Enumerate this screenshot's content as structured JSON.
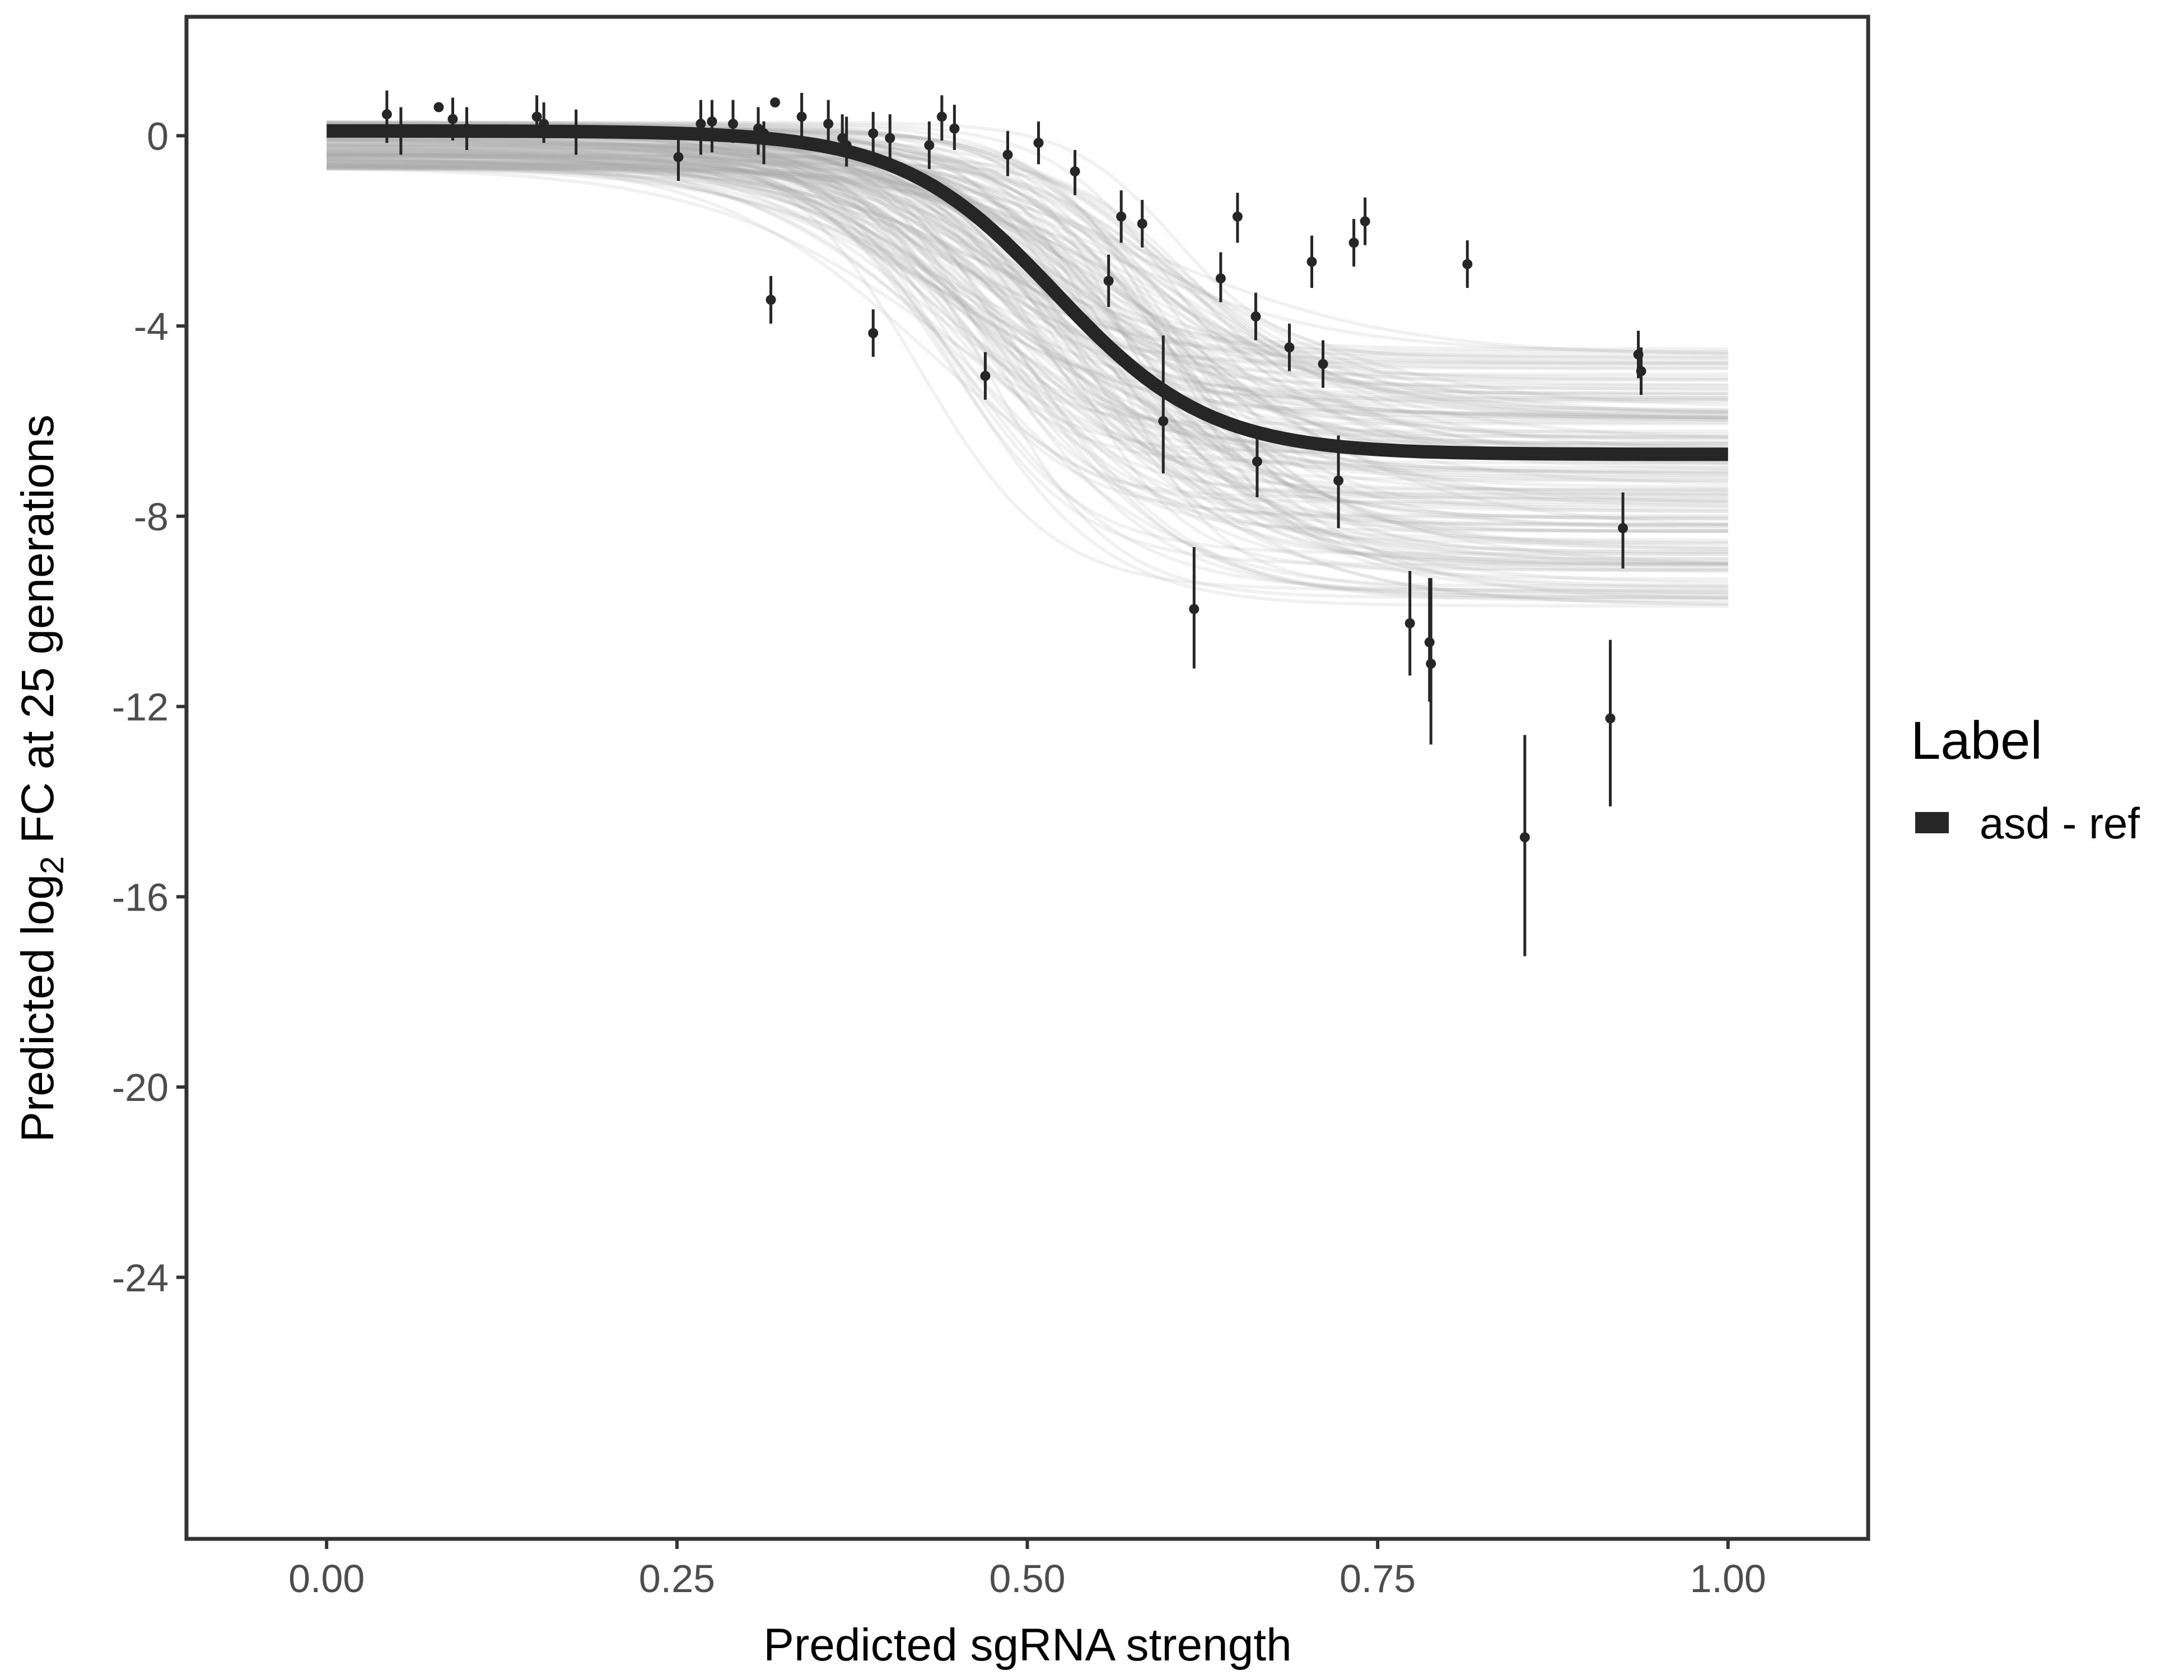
{
  "chart_data": {
    "type": "scatter",
    "title": "",
    "xlabel": "Predicted sgRNA strength",
    "ylabel": {
      "prefix": "Predicted  log",
      "subscript": "2",
      "suffix": " FC at 25 generations"
    },
    "xlim": [
      -0.1,
      1.1
    ],
    "ylim": [
      -29.5,
      2.5
    ],
    "x_ticks": [
      0.0,
      0.25,
      0.5,
      0.75,
      1.0
    ],
    "x_tick_labels": [
      "0.00",
      "0.25",
      "0.50",
      "0.75",
      "1.00"
    ],
    "y_ticks": [
      0,
      -4,
      -8,
      -12,
      -16,
      -20,
      -24
    ],
    "y_tick_labels": [
      "0",
      "-4",
      "-8",
      "-12",
      "-16",
      "-20",
      "-24"
    ],
    "grid": false,
    "legend": {
      "title": "Label",
      "position": "right",
      "entries": [
        {
          "label": "asd - ref",
          "color": "#262626"
        }
      ]
    },
    "fit_curve": {
      "model": "logistic",
      "name": "asd - ref",
      "upper": 0.1,
      "lower": -6.7,
      "midpoint": 0.52,
      "scale": 0.055,
      "x_range": [
        0.0,
        1.0
      ],
      "color": "#262626"
    },
    "posterior_draws": {
      "count": 160,
      "color": "#a6a6a6",
      "upper_range": [
        -0.7,
        0.3
      ],
      "lower_range": [
        -9.9,
        -4.4
      ],
      "midpoint_range": [
        0.42,
        0.62
      ],
      "scale_range": [
        0.035,
        0.09
      ]
    },
    "points": [
      {
        "x": 0.043,
        "y": 0.45,
        "lo": -0.15,
        "hi": 0.95
      },
      {
        "x": 0.053,
        "y": 0.1,
        "lo": -0.4,
        "hi": 0.6
      },
      {
        "x": 0.08,
        "y": 0.6,
        "lo": 0.6,
        "hi": 0.6
      },
      {
        "x": 0.09,
        "y": 0.35,
        "lo": -0.1,
        "hi": 0.8
      },
      {
        "x": 0.1,
        "y": 0.15,
        "lo": -0.3,
        "hi": 0.6
      },
      {
        "x": 0.15,
        "y": 0.4,
        "lo": -0.05,
        "hi": 0.85
      },
      {
        "x": 0.155,
        "y": 0.25,
        "lo": -0.15,
        "hi": 0.7
      },
      {
        "x": 0.178,
        "y": 0.05,
        "lo": -0.4,
        "hi": 0.55
      },
      {
        "x": 0.251,
        "y": -0.45,
        "lo": -0.95,
        "hi": 0.1
      },
      {
        "x": 0.267,
        "y": 0.25,
        "lo": -0.4,
        "hi": 0.75
      },
      {
        "x": 0.275,
        "y": 0.3,
        "lo": -0.35,
        "hi": 0.75
      },
      {
        "x": 0.29,
        "y": 0.25,
        "lo": -0.15,
        "hi": 0.75
      },
      {
        "x": 0.308,
        "y": 0.15,
        "lo": -0.4,
        "hi": 0.6
      },
      {
        "x": 0.312,
        "y": 0.05,
        "lo": -0.6,
        "hi": 0.3
      },
      {
        "x": 0.317,
        "y": -3.45,
        "lo": -3.95,
        "hi": -2.95
      },
      {
        "x": 0.32,
        "y": 0.7,
        "lo": 0.7,
        "hi": 0.7
      },
      {
        "x": 0.339,
        "y": 0.4,
        "lo": -0.2,
        "hi": 0.9
      },
      {
        "x": 0.358,
        "y": 0.25,
        "lo": -0.2,
        "hi": 0.75
      },
      {
        "x": 0.368,
        "y": -0.05,
        "lo": -0.4,
        "hi": 0.45
      },
      {
        "x": 0.371,
        "y": -0.2,
        "lo": -0.65,
        "hi": 0.4
      },
      {
        "x": 0.39,
        "y": 0.05,
        "lo": -0.55,
        "hi": 0.5
      },
      {
        "x": 0.39,
        "y": -4.15,
        "lo": -4.65,
        "hi": -3.65
      },
      {
        "x": 0.402,
        "y": -0.05,
        "lo": -0.6,
        "hi": 0.45
      },
      {
        "x": 0.43,
        "y": -0.2,
        "lo": -0.7,
        "hi": 0.3
      },
      {
        "x": 0.439,
        "y": 0.4,
        "lo": -0.1,
        "hi": 0.85
      },
      {
        "x": 0.448,
        "y": 0.15,
        "lo": -0.3,
        "hi": 0.65
      },
      {
        "x": 0.47,
        "y": -5.05,
        "lo": -5.55,
        "hi": -4.55
      },
      {
        "x": 0.486,
        "y": -0.4,
        "lo": -0.85,
        "hi": 0.1
      },
      {
        "x": 0.508,
        "y": -0.15,
        "lo": -0.6,
        "hi": 0.3
      },
      {
        "x": 0.534,
        "y": -0.75,
        "lo": -1.25,
        "hi": -0.3
      },
      {
        "x": 0.558,
        "y": -3.05,
        "lo": -3.6,
        "hi": -2.5
      },
      {
        "x": 0.567,
        "y": -1.7,
        "lo": -2.25,
        "hi": -1.15
      },
      {
        "x": 0.582,
        "y": -1.85,
        "lo": -2.35,
        "hi": -1.35
      },
      {
        "x": 0.597,
        "y": -6.0,
        "lo": -7.1,
        "hi": -4.2
      },
      {
        "x": 0.619,
        "y": -9.95,
        "lo": -11.2,
        "hi": -8.65
      },
      {
        "x": 0.638,
        "y": -3.0,
        "lo": -3.5,
        "hi": -2.45
      },
      {
        "x": 0.65,
        "y": -1.7,
        "lo": -2.25,
        "hi": -1.2
      },
      {
        "x": 0.663,
        "y": -3.8,
        "lo": -4.3,
        "hi": -3.3
      },
      {
        "x": 0.664,
        "y": -6.85,
        "lo": -7.6,
        "hi": -6.2
      },
      {
        "x": 0.687,
        "y": -4.45,
        "lo": -4.95,
        "hi": -3.95
      },
      {
        "x": 0.703,
        "y": -2.65,
        "lo": -3.2,
        "hi": -2.1
      },
      {
        "x": 0.711,
        "y": -4.8,
        "lo": -5.3,
        "hi": -4.3
      },
      {
        "x": 0.722,
        "y": -7.25,
        "lo": -8.25,
        "hi": -6.3
      },
      {
        "x": 0.733,
        "y": -2.25,
        "lo": -2.75,
        "hi": -1.75
      },
      {
        "x": 0.741,
        "y": -1.8,
        "lo": -2.3,
        "hi": -1.3
      },
      {
        "x": 0.773,
        "y": -10.25,
        "lo": -11.35,
        "hi": -9.15
      },
      {
        "x": 0.787,
        "y": -10.65,
        "lo": -11.9,
        "hi": -9.3
      },
      {
        "x": 0.788,
        "y": -11.1,
        "lo": -12.8,
        "hi": -9.3
      },
      {
        "x": 0.814,
        "y": -2.7,
        "lo": -3.2,
        "hi": -2.2
      },
      {
        "x": 0.855,
        "y": -14.75,
        "lo": -17.25,
        "hi": -12.6
      },
      {
        "x": 0.916,
        "y": -12.25,
        "lo": -14.1,
        "hi": -10.6
      },
      {
        "x": 0.925,
        "y": -8.25,
        "lo": -9.1,
        "hi": -7.5
      },
      {
        "x": 0.936,
        "y": -4.6,
        "lo": -5.1,
        "hi": -4.1
      },
      {
        "x": 0.938,
        "y": -4.95,
        "lo": -5.45,
        "hi": -4.45
      }
    ]
  }
}
